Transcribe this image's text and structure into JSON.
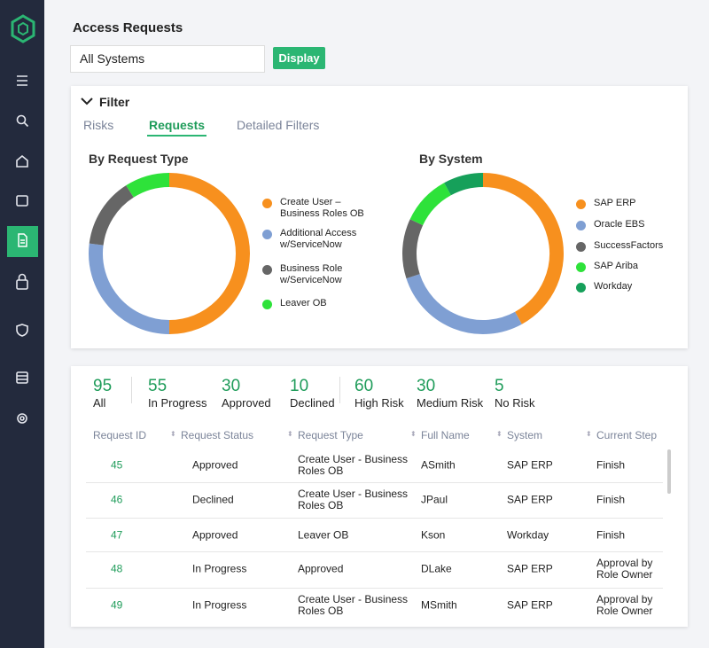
{
  "header": {
    "title": "Access Requests",
    "select": "All Systems",
    "button": "Display"
  },
  "filter": {
    "title": "Filter",
    "tabs": [
      "Risks",
      "Requests",
      "Detailed Filters"
    ]
  },
  "charts": [
    {
      "type": "donut",
      "title": "By Request Type",
      "categories": [
        "Create User – Business Roles OB",
        "Additional Access w/ServiceNow",
        "Business Role w/ServiceNow",
        "Leaver OB"
      ],
      "colors": [
        "#f7901e",
        "#7f9fd3",
        "#666666",
        "#2ee23a"
      ],
      "values": [
        50,
        27,
        14,
        9
      ]
    },
    {
      "type": "donut",
      "title": "By System",
      "categories": [
        "SAP ERP",
        "Oracle EBS",
        "SuccessFactors",
        "SAP Ariba",
        "Workday"
      ],
      "colors": [
        "#f7901e",
        "#7f9fd3",
        "#666666",
        "#2ee23a",
        "#16a05a"
      ],
      "values": [
        42,
        28,
        12,
        10,
        8
      ]
    }
  ],
  "stats": [
    {
      "value": 95,
      "label": "All"
    },
    {
      "value": 55,
      "label": "In Progress"
    },
    {
      "value": 30,
      "label": "Approved"
    },
    {
      "value": 10,
      "label": "Declined"
    },
    {
      "value": 60,
      "label": "High Risk"
    },
    {
      "value": 30,
      "label": "Medium Risk"
    },
    {
      "value": 5,
      "label": "No Risk"
    }
  ],
  "table": {
    "columns": [
      "Request ID",
      "Request Status",
      "Request Type",
      "Full Name",
      "System",
      "Current Step"
    ],
    "rows": [
      [
        "45",
        "Approved",
        "Create User - Business Roles OB",
        "ASmith",
        "SAP ERP",
        "Finish"
      ],
      [
        "46",
        "Declined",
        "Create User - Business Roles OB",
        "JPaul",
        "SAP ERP",
        "Finish"
      ],
      [
        "47",
        "Approved",
        "Leaver OB",
        "Kson",
        "Workday",
        "Finish"
      ],
      [
        "48",
        "In Progress",
        "Approved",
        "DLake",
        "SAP ERP",
        "Approval by Role Owner"
      ],
      [
        "49",
        "In Progress",
        "Create User - Business Roles OB",
        "MSmith",
        "SAP ERP",
        "Approval by Role Owner"
      ]
    ]
  }
}
